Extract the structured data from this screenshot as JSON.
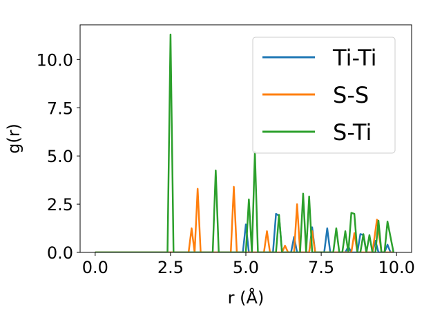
{
  "chart_data": {
    "type": "line",
    "xlabel": "r (Å)",
    "ylabel": "g(r)",
    "xlim": [
      -0.5,
      10.5
    ],
    "ylim": [
      0,
      11.8
    ],
    "x_ticks": [
      0.0,
      2.5,
      5.0,
      7.5,
      10.0
    ],
    "x_tick_labels": [
      "0.0",
      "2.5",
      "5.0",
      "7.5",
      "10.0"
    ],
    "y_ticks": [
      0.0,
      2.5,
      5.0,
      7.5,
      10.0
    ],
    "y_tick_labels": [
      "0.0",
      "2.5",
      "5.0",
      "7.5",
      "10.0"
    ],
    "grid": false,
    "legend_position": "top-right",
    "series": [
      {
        "name": "Ti-Ti",
        "color": "#1f77b4",
        "points": [
          [
            0,
            0
          ],
          [
            4.9,
            0
          ],
          [
            5.0,
            1.45
          ],
          [
            5.1,
            0
          ],
          [
            5.9,
            0
          ],
          [
            6.0,
            2.0
          ],
          [
            6.1,
            1.9
          ],
          [
            6.2,
            0
          ],
          [
            6.5,
            0
          ],
          [
            6.6,
            0.8
          ],
          [
            6.7,
            0
          ],
          [
            7.1,
            0
          ],
          [
            7.2,
            1.3
          ],
          [
            7.3,
            0
          ],
          [
            7.6,
            0
          ],
          [
            7.7,
            1.25
          ],
          [
            7.8,
            0
          ],
          [
            8.3,
            0
          ],
          [
            8.4,
            0.3
          ],
          [
            8.5,
            0
          ],
          [
            8.7,
            0
          ],
          [
            8.8,
            0.95
          ],
          [
            8.9,
            0.9
          ],
          [
            9.0,
            0
          ],
          [
            9.2,
            0
          ],
          [
            9.3,
            0.6
          ],
          [
            9.4,
            0
          ],
          [
            9.6,
            0
          ],
          [
            9.7,
            0.4
          ],
          [
            9.8,
            0
          ],
          [
            9.9,
            0
          ]
        ]
      },
      {
        "name": "S-S",
        "color": "#ff7f0e",
        "points": [
          [
            0,
            0
          ],
          [
            3.1,
            0
          ],
          [
            3.2,
            1.25
          ],
          [
            3.3,
            0
          ],
          [
            3.4,
            3.3
          ],
          [
            3.5,
            0
          ],
          [
            4.5,
            0
          ],
          [
            4.6,
            3.4
          ],
          [
            4.7,
            0
          ],
          [
            5.6,
            0
          ],
          [
            5.7,
            1.1
          ],
          [
            5.8,
            0
          ],
          [
            6.2,
            0
          ],
          [
            6.3,
            0.35
          ],
          [
            6.4,
            0
          ],
          [
            6.6,
            0
          ],
          [
            6.7,
            2.5
          ],
          [
            6.8,
            0
          ],
          [
            7.1,
            0
          ],
          [
            7.2,
            1.1
          ],
          [
            7.3,
            0
          ],
          [
            8.5,
            0
          ],
          [
            8.6,
            1.0
          ],
          [
            8.7,
            0
          ],
          [
            9.2,
            0
          ],
          [
            9.35,
            1.7
          ],
          [
            9.5,
            0
          ],
          [
            9.9,
            0
          ]
        ]
      },
      {
        "name": "S-Ti",
        "color": "#2ca02c",
        "points": [
          [
            0,
            0
          ],
          [
            2.4,
            0
          ],
          [
            2.5,
            11.3
          ],
          [
            2.6,
            0
          ],
          [
            3.9,
            0
          ],
          [
            4.0,
            4.25
          ],
          [
            4.1,
            0
          ],
          [
            5.0,
            0
          ],
          [
            5.1,
            2.75
          ],
          [
            5.2,
            0
          ],
          [
            5.3,
            5.2
          ],
          [
            5.4,
            0
          ],
          [
            6.0,
            0
          ],
          [
            6.1,
            1.95
          ],
          [
            6.2,
            0
          ],
          [
            6.8,
            0
          ],
          [
            6.9,
            3.05
          ],
          [
            7.0,
            0
          ],
          [
            7.1,
            2.9
          ],
          [
            7.2,
            0
          ],
          [
            7.9,
            0
          ],
          [
            8.0,
            1.25
          ],
          [
            8.1,
            0
          ],
          [
            8.2,
            0
          ],
          [
            8.3,
            1.1
          ],
          [
            8.4,
            0
          ],
          [
            8.5,
            2.05
          ],
          [
            8.6,
            2.0
          ],
          [
            8.7,
            0
          ],
          [
            8.8,
            0
          ],
          [
            8.9,
            0.95
          ],
          [
            9.0,
            0
          ],
          [
            9.1,
            0.9
          ],
          [
            9.2,
            0
          ],
          [
            9.3,
            0
          ],
          [
            9.4,
            1.65
          ],
          [
            9.5,
            0
          ],
          [
            9.6,
            0
          ],
          [
            9.7,
            1.6
          ],
          [
            9.8,
            0.8
          ],
          [
            9.9,
            0
          ]
        ]
      }
    ]
  }
}
